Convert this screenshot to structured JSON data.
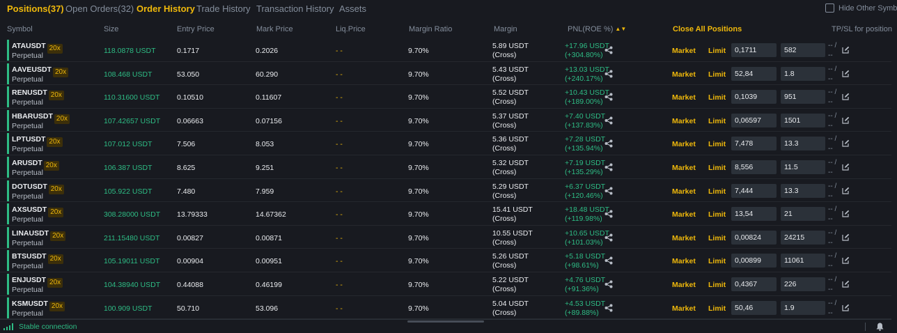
{
  "tabs": [
    {
      "label": "Positions(37)",
      "active": true
    },
    {
      "label": "Open Orders(32)",
      "active": false
    },
    {
      "label": "Order History",
      "active": true
    },
    {
      "label": "Trade History",
      "active": false
    },
    {
      "label": "Transaction History",
      "active": false
    },
    {
      "label": "Assets",
      "active": false
    }
  ],
  "hide_other_label": "Hide Other Symb",
  "columns": {
    "symbol": "Symbol",
    "size": "Size",
    "entry_price": "Entry Price",
    "mark_price": "Mark Price",
    "liq_price": "Liq.Price",
    "margin_ratio": "Margin Ratio",
    "margin": "Margin",
    "pnl": "PNL(ROE %)",
    "close_all": "Close All Positions",
    "tpsl": "TP/SL for position"
  },
  "labels": {
    "perpetual": "Perpetual",
    "market": "Market",
    "limit": "Limit",
    "liq_placeholder": "- -",
    "tpsl_top": "-- /",
    "tpsl_bottom": "--"
  },
  "positions": [
    {
      "symbol": "ATAUSDT",
      "leverage": "20x",
      "size": "118.0878 USDT",
      "entry": "0.1717",
      "mark": "0.2026",
      "ratio": "9.70%",
      "margin": "5.89 USDT",
      "margin_mode": "(Cross)",
      "pnl": "+17.96 USDT",
      "roe": "(+304.80%)",
      "price_input": "0,1711",
      "qty_input": "582"
    },
    {
      "symbol": "AAVEUSDT",
      "leverage": "20x",
      "size": "108.468 USDT",
      "entry": "53.050",
      "mark": "60.290",
      "ratio": "9.70%",
      "margin": "5.43 USDT",
      "margin_mode": "(Cross)",
      "pnl": "+13.03 USDT",
      "roe": "(+240.17%)",
      "price_input": "52,84",
      "qty_input": "1.8"
    },
    {
      "symbol": "RENUSDT",
      "leverage": "20x",
      "size": "110.31600 USDT",
      "entry": "0.10510",
      "mark": "0.11607",
      "ratio": "9.70%",
      "margin": "5.52 USDT",
      "margin_mode": "(Cross)",
      "pnl": "+10.43 USDT",
      "roe": "(+189.00%)",
      "price_input": "0,1039",
      "qty_input": "951"
    },
    {
      "symbol": "HBARUSDT",
      "leverage": "20x",
      "size": "107.42657 USDT",
      "entry": "0.06663",
      "mark": "0.07156",
      "ratio": "9.70%",
      "margin": "5.37 USDT",
      "margin_mode": "(Cross)",
      "pnl": "+7.40 USDT",
      "roe": "(+137.83%)",
      "price_input": "0,06597",
      "qty_input": "1501"
    },
    {
      "symbol": "LPTUSDT",
      "leverage": "20x",
      "size": "107.012 USDT",
      "entry": "7.506",
      "mark": "8.053",
      "ratio": "9.70%",
      "margin": "5.36 USDT",
      "margin_mode": "(Cross)",
      "pnl": "+7.28 USDT",
      "roe": "(+135.94%)",
      "price_input": "7,478",
      "qty_input": "13.3"
    },
    {
      "symbol": "ARUSDT",
      "leverage": "20x",
      "size": "106.387 USDT",
      "entry": "8.625",
      "mark": "9.251",
      "ratio": "9.70%",
      "margin": "5.32 USDT",
      "margin_mode": "(Cross)",
      "pnl": "+7.19 USDT",
      "roe": "(+135.29%)",
      "price_input": "8,556",
      "qty_input": "11.5"
    },
    {
      "symbol": "DOTUSDT",
      "leverage": "20x",
      "size": "105.922 USDT",
      "entry": "7.480",
      "mark": "7.959",
      "ratio": "9.70%",
      "margin": "5.29 USDT",
      "margin_mode": "(Cross)",
      "pnl": "+6.37 USDT",
      "roe": "(+120.46%)",
      "price_input": "7,444",
      "qty_input": "13.3"
    },
    {
      "symbol": "AXSUSDT",
      "leverage": "20x",
      "size": "308.28000 USDT",
      "entry": "13.79333",
      "mark": "14.67362",
      "ratio": "9.70%",
      "margin": "15.41 USDT",
      "margin_mode": "(Cross)",
      "pnl": "+18.48 USDT",
      "roe": "(+119.98%)",
      "price_input": "13,54",
      "qty_input": "21"
    },
    {
      "symbol": "LINAUSDT",
      "leverage": "20x",
      "size": "211.15480 USDT",
      "entry": "0.00827",
      "mark": "0.00871",
      "ratio": "9.70%",
      "margin": "10.55 USDT",
      "margin_mode": "(Cross)",
      "pnl": "+10.65 USDT",
      "roe": "(+101.03%)",
      "price_input": "0,00824",
      "qty_input": "24215"
    },
    {
      "symbol": "BTSUSDT",
      "leverage": "20x",
      "size": "105.19011 USDT",
      "entry": "0.00904",
      "mark": "0.00951",
      "ratio": "9.70%",
      "margin": "5.26 USDT",
      "margin_mode": "(Cross)",
      "pnl": "+5.18 USDT",
      "roe": "(+98.61%)",
      "price_input": "0,00899",
      "qty_input": "11061"
    },
    {
      "symbol": "ENJUSDT",
      "leverage": "20x",
      "size": "104.38940 USDT",
      "entry": "0.44088",
      "mark": "0.46199",
      "ratio": "9.70%",
      "margin": "5.22 USDT",
      "margin_mode": "(Cross)",
      "pnl": "+4.76 USDT",
      "roe": "(+91.36%)",
      "price_input": "0,4367",
      "qty_input": "226"
    },
    {
      "symbol": "KSMUSDT",
      "leverage": "20x",
      "size": "100.909 USDT",
      "entry": "50.710",
      "mark": "53.096",
      "ratio": "9.70%",
      "margin": "5.04 USDT",
      "margin_mode": "(Cross)",
      "pnl": "+4.53 USDT",
      "roe": "(+89.88%)",
      "price_input": "50,46",
      "qty_input": "1.9"
    }
  ],
  "footer": {
    "connection": "Stable connection"
  },
  "colors": {
    "accent": "#f0b90b",
    "positive": "#2ebd85",
    "background": "#181a20",
    "muted": "#848e9c"
  },
  "icons": {
    "share": "share-icon",
    "edit": "edit-icon",
    "signal": "signal-icon",
    "bell": "bell-icon",
    "sort": "sort-icon"
  }
}
